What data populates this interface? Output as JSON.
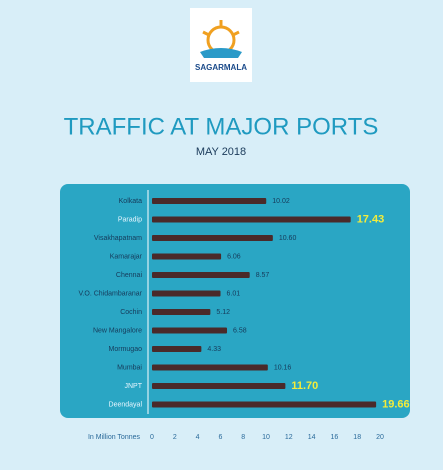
{
  "brand": "SAGARMALA",
  "chart_data": {
    "type": "bar",
    "orientation": "horizontal",
    "title": "TRAFFIC AT MAJOR PORTS",
    "subtitle": "MAY 2018",
    "x_label": "In Million Tonnes",
    "categories": [
      "Kolkata",
      "Paradip",
      "Visakhapatnam",
      "Kamarajar",
      "Chennai",
      "V.O. Chidambaranar",
      "Cochin",
      "New Mangalore",
      "Mormugao",
      "Mumbai",
      "JNPT",
      "Deendayal"
    ],
    "values": [
      10.02,
      17.43,
      10.6,
      6.06,
      8.57,
      6.01,
      5.12,
      6.58,
      4.33,
      10.16,
      11.7,
      19.66
    ],
    "value_labels": [
      "10.02",
      "17.43",
      "10.60",
      "6.06",
      "8.57",
      "6.01",
      "5.12",
      "6.58",
      "4.33",
      "10.16",
      "11.70",
      "19.66"
    ],
    "highlight": [
      false,
      true,
      false,
      false,
      false,
      false,
      false,
      false,
      false,
      false,
      true,
      true
    ],
    "color": "#4a2a2a",
    "highlight_color": "#f4ec3a",
    "xlim": [
      0,
      20
    ],
    "xticks": [
      0,
      2,
      4,
      6,
      8,
      10,
      12,
      14,
      16,
      18,
      20
    ]
  }
}
